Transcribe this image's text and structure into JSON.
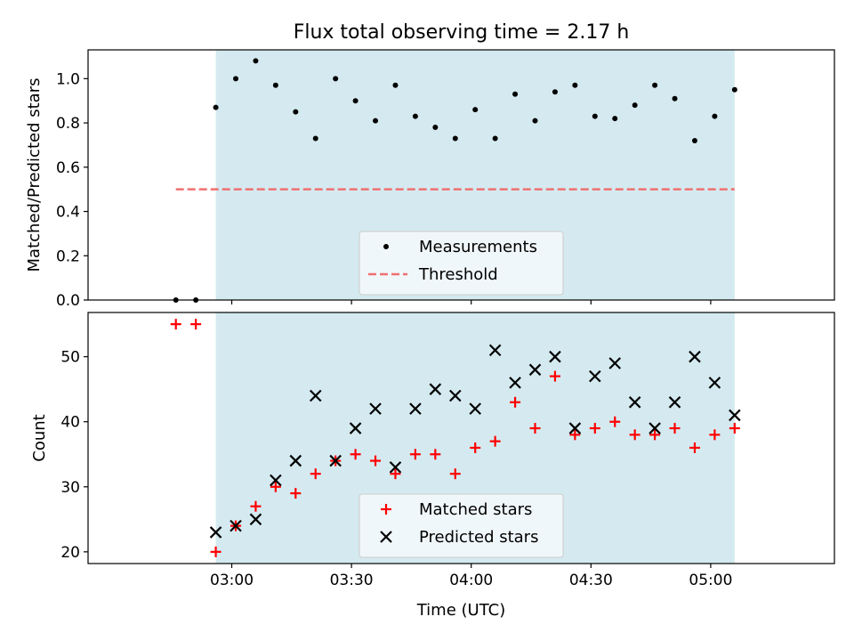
{
  "chart_data": [
    {
      "type": "scatter",
      "title": "Flux total observing time = 2.17 h",
      "xlabel": "",
      "ylabel": "Matched/Predicted stars",
      "ylim": [
        0,
        1.13
      ],
      "yticks": [
        "0.0",
        "0.2",
        "0.4",
        "0.6",
        "0.8",
        "1.0"
      ],
      "x_range": [
        "02:24",
        "05:31"
      ],
      "shaded_span": [
        "02:56",
        "05:06"
      ],
      "shade_color": "#d4eaf0",
      "legend_position": "lower-center",
      "legend": [
        "Measurements",
        "Threshold"
      ],
      "series": [
        {
          "name": "Measurements",
          "color": "#000000",
          "marker": "dot",
          "points": [
            {
              "x": "02:46",
              "y": 0.0
            },
            {
              "x": "02:51",
              "y": 0.0
            },
            {
              "x": "02:56",
              "y": 0.87
            },
            {
              "x": "03:01",
              "y": 1.0
            },
            {
              "x": "03:06",
              "y": 1.08
            },
            {
              "x": "03:11",
              "y": 0.97
            },
            {
              "x": "03:16",
              "y": 0.85
            },
            {
              "x": "03:21",
              "y": 0.73
            },
            {
              "x": "03:26",
              "y": 1.0
            },
            {
              "x": "03:31",
              "y": 0.9
            },
            {
              "x": "03:36",
              "y": 0.81
            },
            {
              "x": "03:41",
              "y": 0.97
            },
            {
              "x": "03:46",
              "y": 0.83
            },
            {
              "x": "03:51",
              "y": 0.78
            },
            {
              "x": "03:56",
              "y": 0.73
            },
            {
              "x": "04:01",
              "y": 0.86
            },
            {
              "x": "04:06",
              "y": 0.73
            },
            {
              "x": "04:11",
              "y": 0.93
            },
            {
              "x": "04:16",
              "y": 0.81
            },
            {
              "x": "04:21",
              "y": 0.94
            },
            {
              "x": "04:26",
              "y": 0.97
            },
            {
              "x": "04:31",
              "y": 0.83
            },
            {
              "x": "04:36",
              "y": 0.82
            },
            {
              "x": "04:41",
              "y": 0.88
            },
            {
              "x": "04:46",
              "y": 0.97
            },
            {
              "x": "04:51",
              "y": 0.91
            },
            {
              "x": "04:56",
              "y": 0.72
            },
            {
              "x": "05:01",
              "y": 0.83
            },
            {
              "x": "05:06",
              "y": 0.95
            }
          ]
        },
        {
          "name": "Threshold",
          "color": "#f07070",
          "style": "dashed",
          "points": [
            {
              "x": "02:46",
              "y": 0.5
            },
            {
              "x": "05:06",
              "y": 0.5
            }
          ]
        }
      ]
    },
    {
      "type": "scatter",
      "title": "",
      "xlabel": "Time (UTC)",
      "ylabel": "Count",
      "ylim": [
        18.2,
        56.8
      ],
      "yticks": [
        "20",
        "30",
        "40",
        "50"
      ],
      "x_range": [
        "02:24",
        "05:31"
      ],
      "xticks": [
        "03:00",
        "03:30",
        "04:00",
        "04:30",
        "05:00"
      ],
      "shaded_span": [
        "02:56",
        "05:06"
      ],
      "shade_color": "#d4eaf0",
      "legend_position": "lower-center",
      "legend": [
        "Matched stars",
        "Predicted stars"
      ],
      "series": [
        {
          "name": "Matched stars",
          "color": "#ff0000",
          "marker": "plus",
          "points": [
            {
              "x": "02:46",
              "y": 55
            },
            {
              "x": "02:51",
              "y": 55
            },
            {
              "x": "02:56",
              "y": 20
            },
            {
              "x": "03:01",
              "y": 24
            },
            {
              "x": "03:06",
              "y": 27
            },
            {
              "x": "03:11",
              "y": 30
            },
            {
              "x": "03:16",
              "y": 29
            },
            {
              "x": "03:21",
              "y": 32
            },
            {
              "x": "03:26",
              "y": 34
            },
            {
              "x": "03:31",
              "y": 35
            },
            {
              "x": "03:36",
              "y": 34
            },
            {
              "x": "03:41",
              "y": 32
            },
            {
              "x": "03:46",
              "y": 35
            },
            {
              "x": "03:51",
              "y": 35
            },
            {
              "x": "03:56",
              "y": 32
            },
            {
              "x": "04:01",
              "y": 36
            },
            {
              "x": "04:06",
              "y": 37
            },
            {
              "x": "04:11",
              "y": 43
            },
            {
              "x": "04:16",
              "y": 39
            },
            {
              "x": "04:21",
              "y": 47
            },
            {
              "x": "04:26",
              "y": 38
            },
            {
              "x": "04:31",
              "y": 39
            },
            {
              "x": "04:36",
              "y": 40
            },
            {
              "x": "04:41",
              "y": 38
            },
            {
              "x": "04:46",
              "y": 38
            },
            {
              "x": "04:51",
              "y": 39
            },
            {
              "x": "04:56",
              "y": 36
            },
            {
              "x": "05:01",
              "y": 38
            },
            {
              "x": "05:06",
              "y": 39
            }
          ]
        },
        {
          "name": "Predicted stars",
          "color": "#000000",
          "marker": "x",
          "points": [
            {
              "x": "02:56",
              "y": 23
            },
            {
              "x": "03:01",
              "y": 24
            },
            {
              "x": "03:06",
              "y": 25
            },
            {
              "x": "03:11",
              "y": 31
            },
            {
              "x": "03:16",
              "y": 34
            },
            {
              "x": "03:21",
              "y": 44
            },
            {
              "x": "03:26",
              "y": 34
            },
            {
              "x": "03:31",
              "y": 39
            },
            {
              "x": "03:36",
              "y": 42
            },
            {
              "x": "03:41",
              "y": 33
            },
            {
              "x": "03:46",
              "y": 42
            },
            {
              "x": "03:51",
              "y": 45
            },
            {
              "x": "03:56",
              "y": 44
            },
            {
              "x": "04:01",
              "y": 42
            },
            {
              "x": "04:06",
              "y": 51
            },
            {
              "x": "04:11",
              "y": 46
            },
            {
              "x": "04:16",
              "y": 48
            },
            {
              "x": "04:21",
              "y": 50
            },
            {
              "x": "04:26",
              "y": 39
            },
            {
              "x": "04:31",
              "y": 47
            },
            {
              "x": "04:36",
              "y": 49
            },
            {
              "x": "04:41",
              "y": 43
            },
            {
              "x": "04:46",
              "y": 39
            },
            {
              "x": "04:51",
              "y": 43
            },
            {
              "x": "04:56",
              "y": 50
            },
            {
              "x": "05:01",
              "y": 46
            },
            {
              "x": "05:06",
              "y": 41
            }
          ]
        }
      ]
    }
  ]
}
